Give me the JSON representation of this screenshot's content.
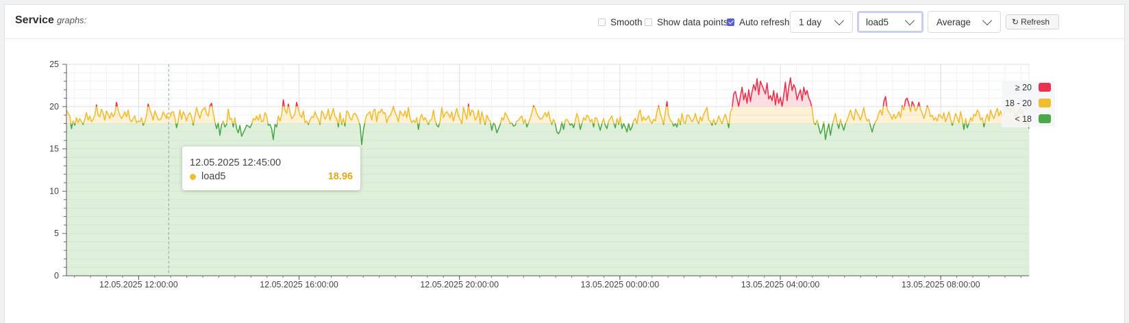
{
  "header": {
    "title_bold": "Service",
    "title_italic": "graphs:"
  },
  "controls": {
    "smooth": {
      "label": "Smooth",
      "checked": false
    },
    "show_points": {
      "label": "Show data points",
      "checked": false
    },
    "auto_refresh": {
      "label": "Auto refresh",
      "checked": true
    },
    "range_select": {
      "value": "1 day"
    },
    "metric_select": {
      "value": "load5"
    },
    "agg_select": {
      "value": "Average"
    },
    "refresh_button": {
      "label": "Refresh",
      "icon": "refresh-icon"
    }
  },
  "tooltip": {
    "time": "12.05.2025 12:45:00",
    "series": "load5",
    "value": "18.96"
  },
  "legend": [
    {
      "label": "≥ 20",
      "color": "#e8324f"
    },
    {
      "label": "18 - 20",
      "color": "#f1bd30"
    },
    {
      "label": "< 18",
      "color": "#4aa84a"
    }
  ],
  "chart_data": {
    "type": "line",
    "series": [
      {
        "name": "load5",
        "x_start": "12.05.2025 10:12:00",
        "x_end": "13.05.2025 10:12:00",
        "values": [
          19.6,
          19.2,
          18.9,
          17.4,
          18.3,
          17.8,
          18.7,
          18.1,
          18.6,
          18.2,
          17.9,
          18.5,
          19.3,
          18.4,
          18.9,
          18.2,
          18.5,
          19.0,
          20.2,
          19.0,
          18.8,
          19.7,
          19.2,
          18.4,
          19.5,
          19.1,
          18.6,
          19.3,
          18.8,
          19.2,
          20.5,
          19.6,
          19.0,
          18.6,
          18.9,
          19.4,
          18.8,
          19.6,
          18.5,
          18.2,
          18.6,
          18.9,
          18.1,
          18.3,
          18.2,
          18.7,
          17.8,
          18.2,
          19.0,
          20.3,
          19.6,
          19.1,
          18.4,
          19.5,
          19.0,
          18.5,
          18.4,
          18.7,
          19.4,
          19.0,
          18.6,
          19.2,
          18.8,
          19.3,
          19.4,
          18.7,
          17.5,
          18.3,
          19.6,
          18.5,
          19.4,
          19.0,
          18.3,
          19.0,
          19.3,
          18.8,
          17.8,
          18.9,
          19.9,
          19.2,
          18.6,
          19.4,
          19.7,
          19.9,
          19.2,
          18.9,
          20.1,
          20.4,
          19.3,
          18.2,
          17.4,
          18.1,
          16.6,
          17.9,
          18.3,
          17.6,
          17.9,
          19.7,
          18.5,
          18.6,
          17.6,
          18.7,
          17.4,
          16.9,
          17.8,
          16.5,
          16.9,
          17.3,
          17.8,
          17.7,
          17.5,
          17.9,
          18.6,
          18.4,
          18.9,
          18.4,
          19.1,
          18.2,
          18.3,
          19.3,
          18.9,
          17.8,
          17.9,
          17.4,
          16.1,
          17.9,
          17.6,
          18.9,
          18.3,
          19.0,
          20.8,
          19.6,
          19.2,
          20.3,
          19.4,
          18.6,
          18.8,
          19.2,
          20.5,
          19.7,
          19.0,
          18.7,
          19.5,
          18.1,
          18.3,
          17.9,
          18.4,
          18.8,
          18.7,
          19.4,
          18.8,
          18.5,
          17.9,
          19.5,
          19.2,
          18.5,
          18.9,
          19.7,
          18.4,
          19.1,
          19.8,
          18.8,
          18.6,
          17.6,
          19.3,
          17.9,
          18.6,
          17.7,
          19.5,
          19.3,
          18.6,
          18.4,
          19.1,
          19.2,
          18.9,
          18.4,
          17.8,
          15.5,
          17.2,
          18.3,
          19.0,
          19.2,
          19.4,
          18.4,
          19.5,
          19.7,
          18.2,
          19.4,
          19.3,
          19.7,
          19.2,
          19.3,
          18.1,
          18.8,
          18.9,
          19.4,
          20.0,
          19.3,
          18.9,
          18.2,
          19.5,
          19.1,
          18.9,
          19.5,
          18.7,
          19.9,
          18.6,
          18.1,
          18.4,
          18.1,
          18.7,
          17.3,
          18.6,
          19.1,
          18.4,
          18.7,
          18.3,
          17.9,
          18.4,
          18.5,
          19.6,
          18.4,
          17.8,
          17.6,
          18.3,
          19.9,
          18.7,
          19.2,
          19.4,
          19.1,
          18.7,
          19.4,
          18.3,
          19.1,
          19.8,
          18.9,
          18.5,
          18.0,
          19.9,
          19.2,
          18.5,
          20.3,
          18.9,
          19.6,
          19.4,
          18.4,
          18.7,
          19.6,
          18.0,
          19.4,
          18.5,
          17.9,
          19.0,
          18.5,
          18.3,
          17.2,
          18.1,
          17.8,
          16.9,
          17.4,
          17.9,
          18.7,
          18.4,
          19.3,
          18.9,
          18.5,
          18.0,
          18.1,
          17.7,
          17.8,
          18.3,
          18.4,
          18.7,
          18.9,
          18.0,
          18.5,
          17.6,
          18.1,
          18.6,
          19.3,
          20.1,
          19.8,
          19.2,
          18.8,
          18.5,
          18.6,
          18.9,
          19.3,
          18.8,
          19.4,
          18.4,
          17.9,
          18.5,
          18.0,
          17.0,
          16.8,
          17.2,
          18.2,
          17.3,
          18.4,
          18.5,
          18.2,
          17.8,
          18.0,
          17.5,
          18.3,
          19.2,
          18.6,
          17.3,
          18.0,
          18.7,
          18.4,
          19.0,
          18.8,
          18.2,
          18.5,
          17.6,
          18.7,
          18.6,
          17.9,
          17.2,
          18.0,
          18.6,
          17.8,
          17.4,
          18.3,
          18.6,
          18.9,
          18.1,
          17.5,
          18.6,
          17.9,
          18.8,
          17.4,
          18.0,
          17.6,
          17.0,
          18.0,
          17.2,
          17.6,
          18.3,
          18.6,
          18.0,
          19.2,
          19.6,
          18.3,
          18.8,
          18.4,
          18.6,
          18.9,
          18.3,
          18.0,
          18.5,
          18.3,
          19.4,
          20.1,
          19.2,
          18.6,
          17.9,
          19.4,
          20.6,
          18.9,
          18.4,
          18.2,
          17.7,
          18.0,
          17.6,
          18.6,
          17.9,
          19.2,
          18.2,
          18.0,
          19.0,
          19.0,
          18.6,
          18.2,
          18.5,
          19.2,
          18.4,
          18.0,
          18.8,
          18.3,
          19.1,
          19.5,
          19.9,
          18.4,
          18.3,
          17.8,
          18.5,
          17.9,
          18.2,
          18.9,
          18.4,
          18.0,
          18.6,
          19.1,
          18.4,
          17.5,
          19.3,
          19.8,
          21.5,
          21.8,
          20.9,
          20.0,
          21.2,
          22.3,
          20.8,
          21.6,
          20.4,
          22.0,
          20.6,
          21.8,
          22.6,
          21.9,
          23.3,
          21.4,
          23.0,
          22.5,
          22.0,
          21.5,
          22.8,
          20.9,
          21.3,
          20.7,
          21.9,
          20.2,
          21.6,
          20.4,
          21.1,
          20.0,
          21.4,
          22.9,
          20.7,
          22.3,
          23.4,
          21.9,
          22.6,
          22.1,
          20.8,
          21.5,
          22.0,
          20.7,
          22.3,
          21.4,
          21.9,
          21.0,
          20.6,
          19.8,
          18.1,
          17.9,
          18.4,
          17.6,
          16.8,
          17.3,
          18.2,
          16.1,
          17.2,
          18.0,
          16.6,
          17.8,
          18.5,
          19.2,
          18.1,
          17.4,
          18.5,
          17.8,
          17.2,
          18.0,
          18.4,
          19.0,
          19.6,
          18.9,
          18.4,
          19.7,
          19.3,
          18.9,
          18.4,
          19.1,
          19.9,
          18.8,
          18.3,
          18.5,
          17.7,
          17.0,
          17.8,
          18.2,
          18.5,
          19.3,
          19.6,
          19.0,
          20.6,
          21.2,
          19.7,
          19.3,
          19.0,
          18.5,
          19.1,
          18.6,
          18.9,
          19.4,
          18.7,
          20.1,
          19.6,
          20.8,
          21.0,
          20.3,
          19.4,
          20.6,
          20.2,
          19.5,
          19.8,
          20.5,
          19.7,
          19.2,
          18.6,
          19.3,
          20.1,
          19.7,
          18.8,
          19.0,
          18.4,
          18.7,
          18.3,
          19.1,
          18.9,
          18.6,
          19.3,
          18.2,
          18.8,
          19.4,
          18.5,
          17.8,
          18.4,
          19.2,
          18.7,
          18.1,
          19.4,
          18.5,
          17.3,
          18.6,
          17.5,
          18.0,
          18.7,
          18.3,
          19.1,
          18.9,
          19.6,
          19.3,
          18.4,
          18.7,
          17.6,
          18.5,
          19.1,
          18.3,
          19.6,
          19.0,
          18.6,
          19.3,
          19.8,
          18.9,
          19.5,
          18.8,
          19.2,
          19.8,
          20.1,
          19.7,
          19.4,
          20.3,
          19.6,
          18.9,
          19.3,
          19.7,
          19.1,
          19.6,
          18.8,
          17.9,
          18.6,
          17.4
        ],
        "thresholds": [
          20,
          18
        ]
      }
    ],
    "x_ticks": [
      "12.05.2025 12:00:00",
      "12.05.2025 16:00:00",
      "12.05.2025 20:00:00",
      "13.05.2025 00:00:00",
      "13.05.2025 04:00:00",
      "13.05.2025 08:00:00"
    ],
    "y_ticks": [
      "0",
      "5",
      "10",
      "15",
      "20",
      "25"
    ],
    "ylim": [
      0,
      25
    ],
    "grid": true,
    "legend_position": "right",
    "hover": {
      "time": "12.05.2025 12:45:00",
      "value": 18.96
    }
  }
}
